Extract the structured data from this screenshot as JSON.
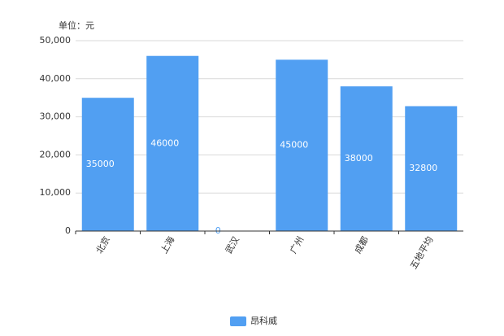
{
  "chart_data": {
    "type": "bar",
    "y_label": "单位：元",
    "categories": [
      "北京",
      "上海",
      "武汉",
      "广州",
      "成都",
      "五地平均"
    ],
    "series": [
      {
        "name": "昂科威",
        "color": "#519ff2",
        "values": [
          35000,
          46000,
          0,
          45000,
          38000,
          32800
        ]
      }
    ],
    "ylim": [
      0,
      50000
    ],
    "yticks": [
      0,
      {
        "value": 10000,
        "label": "10,000"
      },
      {
        "value": 20000,
        "label": "20,000"
      },
      {
        "value": 30000,
        "label": "30,000"
      },
      {
        "value": 40000,
        "label": "40,000"
      },
      {
        "value": 50000,
        "label": "50,000"
      }
    ],
    "grid": true,
    "legend": "bottom"
  }
}
